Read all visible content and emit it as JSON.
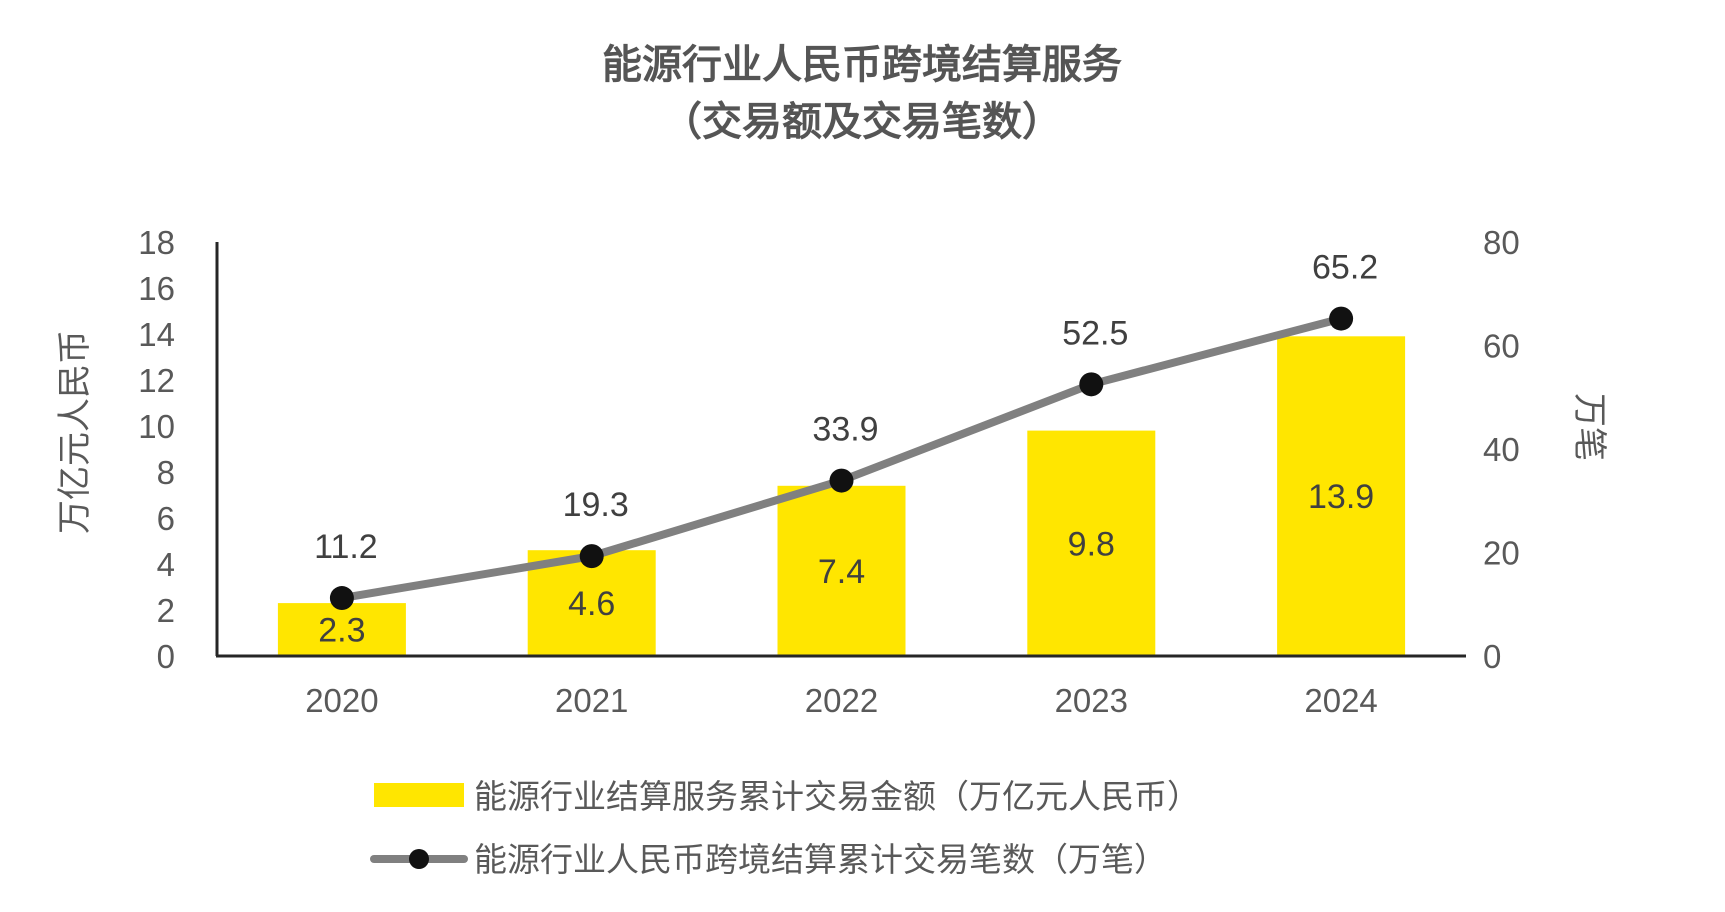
{
  "chart_data": {
    "type": "bar",
    "title": "能源行业人民币跨境结算服务",
    "subtitle": "（交易额及交易笔数）",
    "categories": [
      "2020",
      "2021",
      "2022",
      "2023",
      "2024"
    ],
    "series": [
      {
        "name": "能源行业结算服务累计交易金额（万亿元人民币）",
        "type": "bar",
        "axis": "left",
        "color": "#FFE600",
        "values": [
          2.3,
          4.6,
          7.4,
          9.8,
          13.9
        ],
        "labels": [
          "2.3",
          "4.6",
          "7.4",
          "9.8",
          "13.9"
        ]
      },
      {
        "name": "能源行业人民币跨境结算累计交易笔数（万笔）",
        "type": "line",
        "axis": "right",
        "color": "#808080",
        "marker_color": "#111111",
        "values": [
          11.2,
          19.3,
          33.9,
          52.5,
          65.2
        ],
        "labels": [
          "11.2",
          "19.3",
          "33.9",
          "52.5",
          "65.2"
        ]
      }
    ],
    "y_left": {
      "label": "万亿元人民币",
      "lim": [
        0,
        18
      ],
      "ticks": [
        "0",
        "2",
        "4",
        "6",
        "8",
        "10",
        "12",
        "14",
        "16",
        "18"
      ]
    },
    "y_right": {
      "label": "万笔",
      "lim": [
        0,
        80
      ],
      "ticks": [
        "0",
        "20",
        "40",
        "60",
        "80"
      ]
    },
    "grid": false,
    "legend": "bottom"
  }
}
